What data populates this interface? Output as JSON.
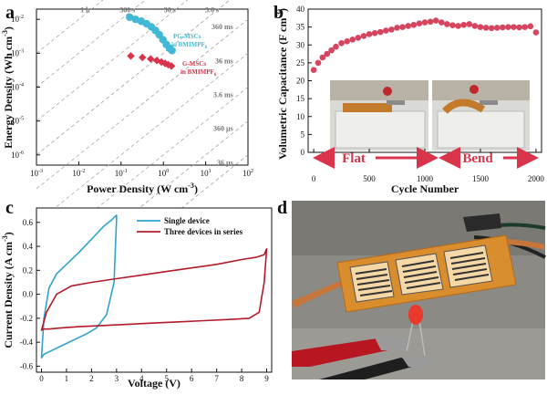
{
  "colors": {
    "cyan": "#3FB9D6",
    "red": "#D9344B",
    "pink": "#D64560",
    "dark_red": "#B21E2E",
    "curve_blue": "#2FA3CF",
    "curve_red": "#B31B2B"
  },
  "panels": {
    "a": "a",
    "b": "b",
    "c": "c",
    "d": "d"
  },
  "panel_a": {
    "xlabel": "Power Density (W cm",
    "xlabel_sup": "-3",
    "xlabel_end": ")",
    "ylabel": "Energy Density (Wh cm",
    "ylabel_sup": "-3",
    "ylabel_end": ")",
    "x_ticks": [
      {
        "base": "10",
        "exp": "-3",
        "v": -3
      },
      {
        "base": "10",
        "exp": "-2",
        "v": -2
      },
      {
        "base": "10",
        "exp": "-1",
        "v": -1
      },
      {
        "base": "10",
        "exp": "0",
        "v": 0
      },
      {
        "base": "10",
        "exp": "1",
        "v": 1
      },
      {
        "base": "10",
        "exp": "2",
        "v": 2
      }
    ],
    "y_ticks": [
      {
        "base": "10",
        "exp": "-6",
        "v": -6
      },
      {
        "base": "10",
        "exp": "-5",
        "v": -5
      },
      {
        "base": "10",
        "exp": "-4",
        "v": -4
      },
      {
        "base": "10",
        "exp": "-3",
        "v": -3
      },
      {
        "base": "10",
        "exp": "-2",
        "v": -2
      }
    ],
    "time_lines": [
      {
        "label": "1 h",
        "log_t": 3.556
      },
      {
        "label": "360 s",
        "log_t": 2.556
      },
      {
        "label": "36 s",
        "log_t": 1.556
      },
      {
        "label": "3.6 s",
        "log_t": 0.556
      },
      {
        "label": "360 ms",
        "log_t": -0.444
      },
      {
        "label": "36 ms",
        "log_t": -1.444
      },
      {
        "label": "3.6 ms",
        "log_t": -2.444
      },
      {
        "label": "360 µs",
        "log_t": -3.444
      },
      {
        "label": "36 µs",
        "log_t": -4.444
      }
    ],
    "legend_pg_line1": "PG-MSCs",
    "legend_pg_line2": "in BMIMPF",
    "legend_pg_sub": "6",
    "legend_g_line1": "G-MSCs",
    "legend_g_line2": "in BMIMPF",
    "legend_g_sub": "6"
  },
  "panel_b": {
    "xlabel": "Cycle Number",
    "ylabel": "Volumetric Capacitance (F cm",
    "ylabel_sup": "-3",
    "ylabel_end": ")",
    "x_ticks": [
      "0",
      "500",
      "1000",
      "1500",
      "2000"
    ],
    "y_ticks": [
      "0",
      "5",
      "10",
      "15",
      "20",
      "25",
      "30",
      "35",
      "40"
    ],
    "flat_label": "Flat",
    "bend_label": "Bend"
  },
  "panel_c": {
    "xlabel": "Voltage (V)",
    "ylabel": "Current Density (A cm",
    "ylabel_sup": "-3",
    "ylabel_end": ")",
    "x_ticks": [
      "0",
      "1",
      "2",
      "3",
      "4",
      "5",
      "6",
      "7",
      "8",
      "9"
    ],
    "y_ticks": [
      "-0.6",
      "-0.4",
      "-0.2",
      "0.0",
      "0.2",
      "0.4",
      "0.6"
    ],
    "legend_single": "Single device",
    "legend_three": "Three devices in series"
  },
  "chart_data": [
    {
      "type": "scatter",
      "panel": "a",
      "xlabel": "Power Density (W cm-3)",
      "ylabel": "Energy Density (Wh cm-3)",
      "x_scale": "log",
      "y_scale": "log",
      "xlim": [
        0.001,
        100
      ],
      "ylim": [
        5e-07,
        0.02
      ],
      "series": [
        {
          "name": "PG-MSCs in BMIMPF6",
          "x": [
            0.16,
            0.22,
            0.3,
            0.4,
            0.52,
            0.65,
            0.8,
            0.98,
            1.18,
            1.4,
            1.6
          ],
          "y": [
            0.0115,
            0.01,
            0.0088,
            0.0074,
            0.006,
            0.0047,
            0.0035,
            0.0025,
            0.0018,
            0.0014,
            0.0012
          ]
        },
        {
          "name": "G-MSCs in BMIMPF6",
          "x": [
            0.17,
            0.32,
            0.5,
            0.7,
            0.9,
            1.1,
            1.3,
            1.55
          ],
          "y": [
            0.00083,
            0.00075,
            0.00068,
            0.00061,
            0.00055,
            0.0005,
            0.00046,
            0.00042
          ]
        }
      ],
      "grid": false,
      "legend": "inline next to series"
    },
    {
      "type": "scatter",
      "panel": "b",
      "xlabel": "Cycle Number",
      "ylabel": "Volumetric Capacitance (F cm-3)",
      "xlim": [
        -50,
        2050
      ],
      "ylim": [
        0,
        40
      ],
      "x": [
        0,
        40,
        80,
        120,
        160,
        200,
        250,
        300,
        350,
        400,
        450,
        500,
        550,
        600,
        650,
        700,
        750,
        800,
        850,
        900,
        950,
        1000,
        1050,
        1100,
        1150,
        1200,
        1250,
        1300,
        1350,
        1400,
        1450,
        1500,
        1550,
        1600,
        1650,
        1700,
        1750,
        1800,
        1850,
        1900,
        1950,
        2000
      ],
      "y": [
        23,
        25,
        26.5,
        27.5,
        28.5,
        29.5,
        30.5,
        31,
        31.5,
        32,
        32.5,
        33,
        33.3,
        33.6,
        34,
        34.3,
        34.8,
        35,
        35.3,
        35.6,
        36,
        36.3,
        36.5,
        36.8,
        36.3,
        35.8,
        35.5,
        35.3,
        35.6,
        35.8,
        35.3,
        35,
        34.8,
        34.7,
        34.8,
        34.9,
        35,
        35,
        34.9,
        35,
        35.2,
        33.5
      ],
      "annotations": [
        "Flat",
        "Bend"
      ]
    },
    {
      "type": "line",
      "panel": "c",
      "xlabel": "Voltage (V)",
      "ylabel": "Current Density (A cm-3)",
      "xlim": [
        -0.2,
        9.2
      ],
      "ylim": [
        -0.65,
        0.72
      ],
      "series": [
        {
          "name": "Single device",
          "x": [
            0,
            0.1,
            0.3,
            0.6,
            1,
            1.5,
            2,
            2.5,
            2.8,
            3,
            3,
            2.9,
            2.6,
            2.2,
            1.8,
            1.4,
            1,
            0.6,
            0.3,
            0.1,
            0
          ],
          "y": [
            -0.53,
            -0.2,
            0.05,
            0.17,
            0.25,
            0.35,
            0.46,
            0.57,
            0.62,
            0.66,
            0.62,
            0.1,
            -0.17,
            -0.28,
            -0.33,
            -0.37,
            -0.41,
            -0.45,
            -0.48,
            -0.5,
            -0.53
          ]
        },
        {
          "name": "Three devices in series",
          "x": [
            0,
            0.2,
            0.6,
            1.2,
            2,
            3,
            4,
            5,
            6,
            7,
            8,
            8.6,
            8.9,
            9,
            8.9,
            8.7,
            8.3,
            7.5,
            6.5,
            5.5,
            4.5,
            3.5,
            2.5,
            1.5,
            0.8,
            0.3,
            0.1,
            0
          ],
          "y": [
            -0.3,
            -0.15,
            0.0,
            0.07,
            0.1,
            0.13,
            0.16,
            0.19,
            0.22,
            0.25,
            0.29,
            0.31,
            0.33,
            0.38,
            0.1,
            -0.15,
            -0.2,
            -0.21,
            -0.22,
            -0.23,
            -0.24,
            -0.25,
            -0.26,
            -0.27,
            -0.28,
            -0.29,
            -0.29,
            -0.3
          ]
        }
      ],
      "legend": "top-right"
    }
  ]
}
